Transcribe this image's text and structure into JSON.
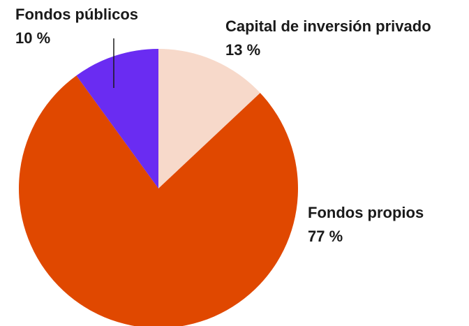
{
  "chart_data": {
    "type": "pie",
    "categories": [
      "Capital de inversión privado",
      "Fondos propios",
      "Fondos públicos"
    ],
    "values": [
      13,
      77,
      10
    ],
    "value_labels": [
      "13 %",
      "77 %",
      "10 %"
    ],
    "colors": [
      "#f7d9ca",
      "#e04800",
      "#6a2cf2"
    ]
  }
}
